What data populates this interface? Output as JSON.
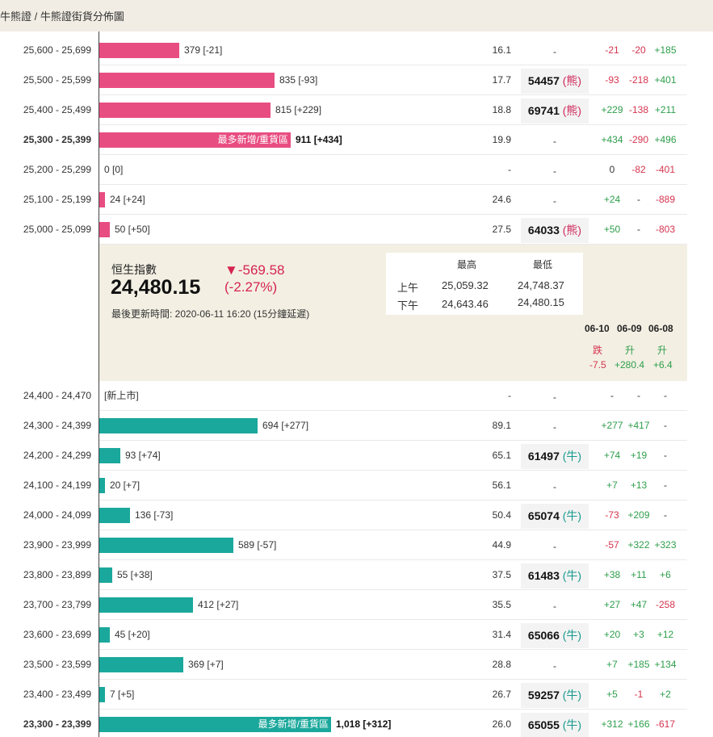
{
  "breadcrumb": "牛熊證 / 牛熊證街貨分佈圖",
  "bear_rows": [
    {
      "range": "25,600 - 25,699",
      "qty": "379 [-21]",
      "ratio": "16.1",
      "code": "-",
      "type": "",
      "c1": "-21",
      "c2": "-20",
      "c3": "+185"
    },
    {
      "range": "25,500 - 25,599",
      "qty": "835 [-93]",
      "ratio": "17.7",
      "code": "54457",
      "type": "(熊)",
      "c1": "-93",
      "c2": "-218",
      "c3": "+401"
    },
    {
      "range": "25,400 - 25,499",
      "qty": "815 [+229]",
      "ratio": "18.8",
      "code": "69741",
      "type": "(熊)",
      "c1": "+229",
      "c2": "-138",
      "c3": "+211"
    },
    {
      "range": "25,300 - 25,399",
      "qty": "911 [+434]",
      "ratio": "19.9",
      "code": "-",
      "type": "",
      "c1": "+434",
      "c2": "-290",
      "c3": "+496",
      "tag": "最多新增/重貨區"
    },
    {
      "range": "25,200 - 25,299",
      "qty": "0 [0]",
      "ratio": "-",
      "code": "-",
      "type": "",
      "c1": "0",
      "c2": "-82",
      "c3": "-401"
    },
    {
      "range": "25,100 - 25,199",
      "qty": "24 [+24]",
      "ratio": "24.6",
      "code": "-",
      "type": "",
      "c1": "+24",
      "c2": "-",
      "c3": "-889"
    },
    {
      "range": "25,000 - 25,099",
      "qty": "50 [+50]",
      "ratio": "27.5",
      "code": "64033",
      "type": "(熊)",
      "c1": "+50",
      "c2": "-",
      "c3": "-803"
    }
  ],
  "index": {
    "name": "恒生指數",
    "value": "24,480.15",
    "change": "▼-569.58",
    "change_pct": "(-2.27%)",
    "updated": "最後更新時間: 2020-06-11 16:20 (15分鐘延遲)",
    "high_label": "最高",
    "low_label": "最低",
    "am_label": "上午",
    "pm_label": "下午",
    "am_high": "25,059.32",
    "am_low": "24,748.37",
    "pm_high": "24,643.46",
    "pm_low": "24,480.15"
  },
  "history": [
    {
      "date": "06-10",
      "dir": "跌",
      "val": "-7.5"
    },
    {
      "date": "06-09",
      "dir": "升",
      "val": "+280.4"
    },
    {
      "date": "06-08",
      "dir": "升",
      "val": "+6.4"
    }
  ],
  "bull_rows": [
    {
      "range": "24,400 - 24,470",
      "qty": "[新上市]",
      "ratio": "-",
      "code": "-",
      "type": "",
      "c1": "-",
      "c2": "-",
      "c3": "-"
    },
    {
      "range": "24,300 - 24,399",
      "qty": "694 [+277]",
      "ratio": "89.1",
      "code": "-",
      "type": "",
      "c1": "+277",
      "c2": "+417",
      "c3": "-"
    },
    {
      "range": "24,200 - 24,299",
      "qty": "93 [+74]",
      "ratio": "65.1",
      "code": "61497",
      "type": "(牛)",
      "c1": "+74",
      "c2": "+19",
      "c3": "-"
    },
    {
      "range": "24,100 - 24,199",
      "qty": "20 [+7]",
      "ratio": "56.1",
      "code": "-",
      "type": "",
      "c1": "+7",
      "c2": "+13",
      "c3": "-"
    },
    {
      "range": "24,000 - 24,099",
      "qty": "136 [-73]",
      "ratio": "50.4",
      "code": "65074",
      "type": "(牛)",
      "c1": "-73",
      "c2": "+209",
      "c3": "-"
    },
    {
      "range": "23,900 - 23,999",
      "qty": "589 [-57]",
      "ratio": "44.9",
      "code": "-",
      "type": "",
      "c1": "-57",
      "c2": "+322",
      "c3": "+323"
    },
    {
      "range": "23,800 - 23,899",
      "qty": "55 [+38]",
      "ratio": "37.5",
      "code": "61483",
      "type": "(牛)",
      "c1": "+38",
      "c2": "+11",
      "c3": "+6"
    },
    {
      "range": "23,700 - 23,799",
      "qty": "412 [+27]",
      "ratio": "35.5",
      "code": "-",
      "type": "",
      "c1": "+27",
      "c2": "+47",
      "c3": "-258"
    },
    {
      "range": "23,600 - 23,699",
      "qty": "45 [+20]",
      "ratio": "31.4",
      "code": "65066",
      "type": "(牛)",
      "c1": "+20",
      "c2": "+3",
      "c3": "+12"
    },
    {
      "range": "23,500 - 23,599",
      "qty": "369 [+7]",
      "ratio": "28.8",
      "code": "-",
      "type": "",
      "c1": "+7",
      "c2": "+185",
      "c3": "+134"
    },
    {
      "range": "23,400 - 23,499",
      "qty": "7 [+5]",
      "ratio": "26.7",
      "code": "59257",
      "type": "(牛)",
      "c1": "+5",
      "c2": "-1",
      "c3": "+2"
    },
    {
      "range": "23,300 - 23,399",
      "qty": "1,018 [+312]",
      "ratio": "26.0",
      "code": "65055",
      "type": "(牛)",
      "c1": "+312",
      "c2": "+166",
      "c3": "-617",
      "tag": "最多新增/重貨區"
    }
  ],
  "colors": {
    "bear": "#e84d82",
    "bull": "#1ba89c",
    "up": "#2e9e4b",
    "down": "#d5344f",
    "panel": "#f3efe3"
  }
}
